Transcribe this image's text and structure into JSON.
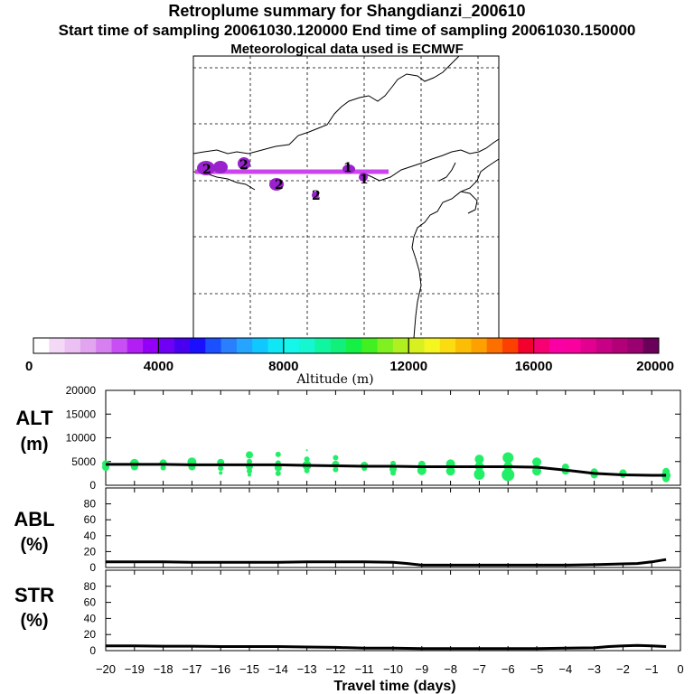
{
  "header": {
    "title": "Retroplume summary for Shangdianzi_200610",
    "sampling_line": "Start time of sampling 20061030.120000     End time of sampling 20061030.150000",
    "met_line": "Meteorological data used is ECMWF"
  },
  "colors": {
    "plume_track": "#cc44ee",
    "cluster_fill": "#9922cc",
    "dot": "#22ee66",
    "line": "#000000"
  },
  "colorbar": {
    "label": "Altitude (m)",
    "ticks": [
      "0",
      "4000",
      "8000",
      "12000",
      "16000",
      "20000"
    ],
    "tick_values": [
      0,
      4000,
      8000,
      12000,
      16000,
      20000
    ],
    "colors": [
      "#ffffff",
      "#f4d9f7",
      "#ecc0f3",
      "#e2a3ef",
      "#d67ff0",
      "#c84ff3",
      "#b21ff5",
      "#9400f7",
      "#7000f5",
      "#4a00f0",
      "#1a10ff",
      "#1a50ff",
      "#2a7fff",
      "#25a5ff",
      "#10c8ff",
      "#10e7f5",
      "#15f7ea",
      "#15f7d0",
      "#10f5a0",
      "#10f07a",
      "#15f045",
      "#40f020",
      "#80f020",
      "#b0f020",
      "#d9f020",
      "#f5f520",
      "#fadc10",
      "#fbbe05",
      "#fda000",
      "#fd7000",
      "#fd4000",
      "#f4002f",
      "#f70072",
      "#fa00a4",
      "#f9009f",
      "#e30090",
      "#c80085",
      "#b40078",
      "#9a0070",
      "#6a005a"
    ]
  },
  "map": {
    "cluster_labels": [
      {
        "text": "2"
      },
      {
        "text": "2"
      },
      {
        "text": "2"
      },
      {
        "text": "2"
      },
      {
        "text": "1"
      },
      {
        "text": "1"
      }
    ]
  },
  "chart_data": [
    {
      "type": "line",
      "title": "ALT",
      "ylabel": "ALT\n(m)",
      "ylabel_lines": [
        "ALT",
        "(m)"
      ],
      "xlabel": "Travel time (days)",
      "ylim": [
        0,
        20000
      ],
      "yticks": [
        "0",
        "5000",
        "10000",
        "15000",
        "20000"
      ],
      "ytick_values": [
        0,
        5000,
        10000,
        15000,
        20000
      ],
      "xlim": [
        -20,
        0
      ],
      "x": [
        -20,
        -19,
        -18,
        -17,
        -16,
        -15,
        -14,
        -13,
        -12,
        -11,
        -10,
        -9,
        -8,
        -7,
        -6,
        -5,
        -4,
        -3,
        -2,
        -1,
        -0.5
      ],
      "values": [
        4400,
        4400,
        4400,
        4300,
        4300,
        4300,
        4300,
        4200,
        4100,
        4000,
        4000,
        3900,
        3900,
        3900,
        3900,
        3800,
        3200,
        2500,
        2200,
        2100,
        2100
      ],
      "scatter": [
        {
          "x": -20,
          "y": 4500,
          "size": 4
        },
        {
          "x": -20,
          "y": 3800,
          "size": 4
        },
        {
          "x": -19,
          "y": 4600,
          "size": 5
        },
        {
          "x": -19,
          "y": 3900,
          "size": 4
        },
        {
          "x": -18,
          "y": 4700,
          "size": 4
        },
        {
          "x": -18,
          "y": 3700,
          "size": 3
        },
        {
          "x": -17,
          "y": 4900,
          "size": 5
        },
        {
          "x": -17,
          "y": 3900,
          "size": 4
        },
        {
          "x": -16,
          "y": 4800,
          "size": 4
        },
        {
          "x": -16,
          "y": 3600,
          "size": 3
        },
        {
          "x": -16,
          "y": 2600,
          "size": 2
        },
        {
          "x": -15,
          "y": 6400,
          "size": 4
        },
        {
          "x": -15,
          "y": 5000,
          "size": 3
        },
        {
          "x": -15,
          "y": 4000,
          "size": 4
        },
        {
          "x": -15,
          "y": 3000,
          "size": 3
        },
        {
          "x": -15,
          "y": 2200,
          "size": 2
        },
        {
          "x": -14,
          "y": 6500,
          "size": 3
        },
        {
          "x": -14,
          "y": 4700,
          "size": 3
        },
        {
          "x": -14,
          "y": 3700,
          "size": 4
        },
        {
          "x": -14,
          "y": 2500,
          "size": 3
        },
        {
          "x": -13,
          "y": 7400,
          "size": 1
        },
        {
          "x": -13,
          "y": 5500,
          "size": 3
        },
        {
          "x": -13,
          "y": 4200,
          "size": 5
        },
        {
          "x": -13,
          "y": 3100,
          "size": 3
        },
        {
          "x": -12,
          "y": 5800,
          "size": 3
        },
        {
          "x": -12,
          "y": 4400,
          "size": 4
        },
        {
          "x": -12,
          "y": 3300,
          "size": 3
        },
        {
          "x": -11,
          "y": 4200,
          "size": 4
        },
        {
          "x": -11,
          "y": 3600,
          "size": 3
        },
        {
          "x": -10,
          "y": 4600,
          "size": 3
        },
        {
          "x": -10,
          "y": 3400,
          "size": 4
        },
        {
          "x": -10,
          "y": 2600,
          "size": 3
        },
        {
          "x": -9,
          "y": 4400,
          "size": 4
        },
        {
          "x": -9,
          "y": 3100,
          "size": 5
        },
        {
          "x": -8,
          "y": 4500,
          "size": 5
        },
        {
          "x": -8,
          "y": 3000,
          "size": 5
        },
        {
          "x": -7,
          "y": 5500,
          "size": 5
        },
        {
          "x": -7,
          "y": 4000,
          "size": 5
        },
        {
          "x": -7,
          "y": 2300,
          "size": 6
        },
        {
          "x": -6,
          "y": 5800,
          "size": 6
        },
        {
          "x": -6,
          "y": 4000,
          "size": 5
        },
        {
          "x": -6,
          "y": 2200,
          "size": 7
        },
        {
          "x": -5,
          "y": 4900,
          "size": 5
        },
        {
          "x": -5,
          "y": 3000,
          "size": 5
        },
        {
          "x": -4,
          "y": 3800,
          "size": 4
        },
        {
          "x": -4,
          "y": 3000,
          "size": 4
        },
        {
          "x": -3,
          "y": 2800,
          "size": 4
        },
        {
          "x": -3,
          "y": 2200,
          "size": 4
        },
        {
          "x": -2,
          "y": 2600,
          "size": 4
        },
        {
          "x": -2,
          "y": 2100,
          "size": 3
        },
        {
          "x": -0.5,
          "y": 2900,
          "size": 4
        },
        {
          "x": -0.5,
          "y": 2100,
          "size": 5
        },
        {
          "x": -0.5,
          "y": 1400,
          "size": 4
        }
      ]
    },
    {
      "type": "line",
      "title": "ABL",
      "ylabel_lines": [
        "ABL",
        "(%)"
      ],
      "ylim": [
        0,
        100
      ],
      "yticks": [
        "0",
        "20",
        "40",
        "60",
        "80"
      ],
      "ytick_values": [
        0,
        20,
        40,
        60,
        80
      ],
      "xlim": [
        -20,
        0
      ],
      "x": [
        -20,
        -19,
        -18,
        -17,
        -16,
        -15,
        -14,
        -13,
        -12,
        -11,
        -10,
        -9.5,
        -9,
        -8,
        -7,
        -6,
        -5,
        -4,
        -3,
        -2,
        -1.5,
        -1,
        -0.5
      ],
      "values": [
        7,
        7,
        7,
        6.5,
        6.5,
        6.5,
        6.5,
        7,
        7,
        7,
        6.5,
        5,
        3,
        3,
        3,
        3,
        3,
        3,
        3.5,
        4.5,
        5,
        7,
        10
      ]
    },
    {
      "type": "line",
      "title": "STR",
      "ylabel_lines": [
        "STR",
        "(%)"
      ],
      "ylim": [
        0,
        100
      ],
      "yticks": [
        "0",
        "20",
        "40",
        "60",
        "80"
      ],
      "ytick_values": [
        0,
        20,
        40,
        60,
        80
      ],
      "xlim": [
        -20,
        0
      ],
      "x": [
        -20,
        -19,
        -18,
        -17,
        -16,
        -15,
        -14,
        -13,
        -12,
        -11,
        -10,
        -9,
        -8,
        -7,
        -6,
        -5,
        -4,
        -3,
        -2.5,
        -2,
        -1.5,
        -1,
        -0.5
      ],
      "values": [
        6,
        6,
        5.5,
        5.5,
        5,
        5,
        5,
        4.5,
        4,
        3,
        3,
        2.5,
        2.5,
        2.5,
        2.5,
        2.5,
        3,
        3.5,
        5,
        6,
        6.5,
        6,
        5
      ],
      "xticks": [
        "−20",
        "−19",
        "−18",
        "−17",
        "−16",
        "−15",
        "−14",
        "−13",
        "−12",
        "−11",
        "−10",
        "−9",
        "−8",
        "−7",
        "−6",
        "−5",
        "−4",
        "−3",
        "−2",
        "−1",
        "0"
      ],
      "xtick_values": [
        -20,
        -19,
        -18,
        -17,
        -16,
        -15,
        -14,
        -13,
        -12,
        -11,
        -10,
        -9,
        -8,
        -7,
        -6,
        -5,
        -4,
        -3,
        -2,
        -1,
        0
      ],
      "xlabel": "Travel time (days)"
    }
  ]
}
